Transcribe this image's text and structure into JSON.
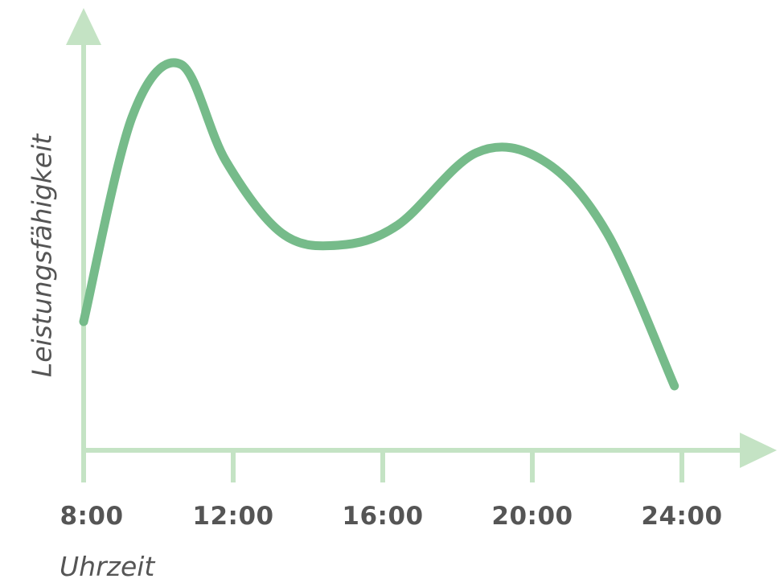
{
  "chart_data": {
    "type": "line",
    "xlabel": "Uhrzeit",
    "ylabel": "Leistungsfähigkeit",
    "x_ticks": [
      8,
      12,
      16,
      20,
      24
    ],
    "tick_labels": [
      "8:00",
      "12:00",
      "16:00",
      "20:00",
      "24:00"
    ],
    "xlim": [
      8,
      24
    ],
    "ylim": [
      0,
      10
    ],
    "grid": false,
    "series": [
      {
        "x": [
          8,
          9.3,
          10.6,
          11.8,
          13.3,
          14.8,
          16.4,
          18.5,
          20.3,
          22.0,
          23.8
        ],
        "values": [
          3.2,
          8.3,
          9.6,
          7.2,
          5.4,
          5.1,
          5.6,
          7.4,
          7.2,
          5.4,
          1.6
        ]
      }
    ],
    "colors": {
      "line": "#76bb8a",
      "axis": "#c4e3c4",
      "text": "#555555"
    }
  }
}
